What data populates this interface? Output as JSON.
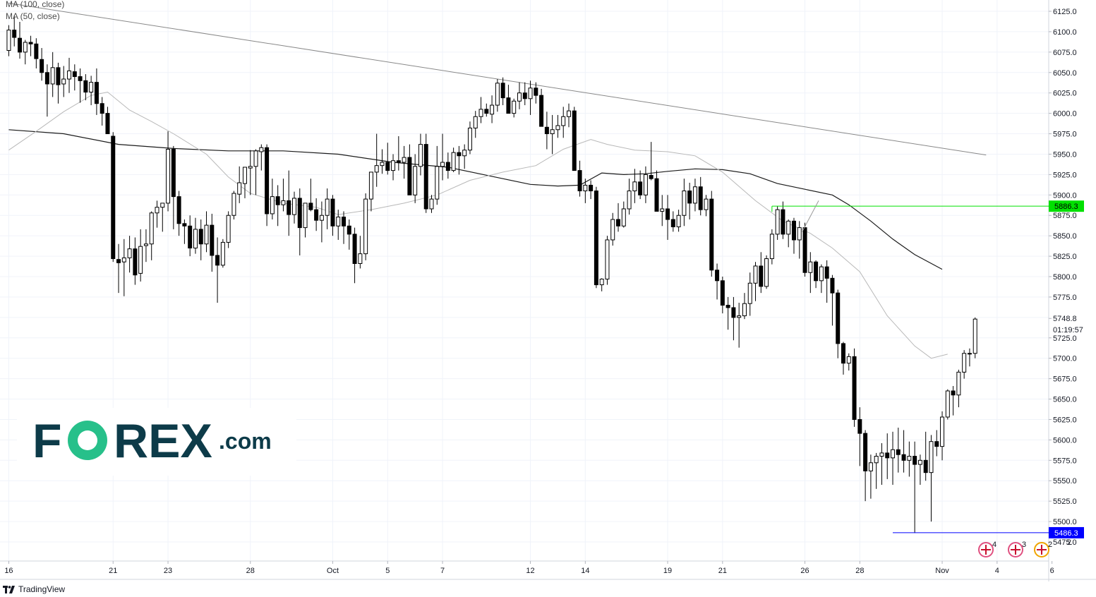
{
  "chart_data": {
    "type": "candlestick",
    "instrument_note": "",
    "y_range": [
      5462,
      6137
    ],
    "y_ticks": [
      5475,
      5500,
      5525,
      5550,
      5575,
      5600,
      5625,
      5650,
      5675,
      5700,
      5725,
      5750,
      5775,
      5800,
      5825,
      5850,
      5875,
      5900,
      5925,
      5950,
      5975,
      6000,
      6025,
      6050,
      6075,
      6100,
      6125
    ],
    "y_tick_labels": [
      "5475.0",
      "5500.0",
      "5525.0",
      "5550.0",
      "5575.0",
      "5600.0",
      "5625.0",
      "5650.0",
      "5675.0",
      "5700.0",
      "5725.0",
      "",
      "5775.0",
      "5800.0",
      "5825.0",
      "5850.0",
      "5875.0",
      "5900.0",
      "5925.0",
      "5950.0",
      "5975.0",
      "6000.0",
      "6025.0",
      "6050.0",
      "6075.0",
      "6100.0",
      "6125.0"
    ],
    "x_labels": [
      {
        "label": "16",
        "bar": 0
      },
      {
        "label": "21",
        "bar": 19
      },
      {
        "label": "23",
        "bar": 29
      },
      {
        "label": "28",
        "bar": 44
      },
      {
        "label": "Oct",
        "bar": 59
      },
      {
        "label": "5",
        "bar": 69
      },
      {
        "label": "7",
        "bar": 79
      },
      {
        "label": "12",
        "bar": 95
      },
      {
        "label": "14",
        "bar": 105
      },
      {
        "label": "19",
        "bar": 120
      },
      {
        "label": "21",
        "bar": 130
      },
      {
        "label": "26",
        "bar": 145
      },
      {
        "label": "28",
        "bar": 155
      },
      {
        "label": "Nov",
        "bar": 170
      },
      {
        "label": "4",
        "bar": 180
      },
      {
        "label": "6",
        "bar": 190
      }
    ],
    "candles": [
      [
        6077,
        6108,
        6070,
        6102
      ],
      [
        6102,
        6120,
        6082,
        6093
      ],
      [
        6092,
        6112,
        6067,
        6075
      ],
      [
        6075,
        6090,
        6060,
        6087
      ],
      [
        6087,
        6095,
        6070,
        6085
      ],
      [
        6085,
        6092,
        6055,
        6067
      ],
      [
        6066,
        6080,
        6040,
        6050
      ],
      [
        6050,
        6060,
        5996,
        6036
      ],
      [
        6036,
        6075,
        6020,
        6056
      ],
      [
        6056,
        6062,
        6012,
        6035
      ],
      [
        6036,
        6058,
        6020,
        6042
      ],
      [
        6042,
        6068,
        6025,
        6052
      ],
      [
        6051,
        6060,
        6028,
        6045
      ],
      [
        6045,
        6055,
        6013,
        6040
      ],
      [
        6040,
        6048,
        6016,
        6026
      ],
      [
        6026,
        6046,
        6010,
        6038
      ],
      [
        6038,
        6055,
        5998,
        6012
      ],
      [
        6012,
        6020,
        5985,
        6000
      ],
      [
        6000,
        6008,
        5978,
        5975
      ],
      [
        5972,
        5977,
        5818,
        5822
      ],
      [
        5821,
        5840,
        5780,
        5817
      ],
      [
        5818,
        5846,
        5776,
        5823
      ],
      [
        5823,
        5850,
        5805,
        5834
      ],
      [
        5834,
        5848,
        5790,
        5802
      ],
      [
        5804,
        5858,
        5794,
        5837
      ],
      [
        5838,
        5858,
        5818,
        5840
      ],
      [
        5840,
        5880,
        5820,
        5878
      ],
      [
        5878,
        5893,
        5860,
        5885
      ],
      [
        5885,
        5890,
        5855,
        5890
      ],
      [
        5890,
        5978,
        5880,
        5956
      ],
      [
        5956,
        5960,
        5858,
        5898
      ],
      [
        5898,
        5905,
        5850,
        5865
      ],
      [
        5865,
        5870,
        5840,
        5862
      ],
      [
        5862,
        5875,
        5825,
        5835
      ],
      [
        5835,
        5872,
        5828,
        5858
      ],
      [
        5858,
        5870,
        5820,
        5840
      ],
      [
        5840,
        5880,
        5830,
        5863
      ],
      [
        5863,
        5877,
        5806,
        5826
      ],
      [
        5826,
        5848,
        5768,
        5814
      ],
      [
        5814,
        5846,
        5811,
        5842
      ],
      [
        5842,
        5880,
        5835,
        5875
      ],
      [
        5875,
        5905,
        5870,
        5902
      ],
      [
        5901,
        5935,
        5890,
        5915
      ],
      [
        5914,
        5930,
        5896,
        5934
      ],
      [
        5933,
        5955,
        5900,
        5935
      ],
      [
        5935,
        5956,
        5900,
        5954
      ],
      [
        5953,
        5962,
        5930,
        5958
      ],
      [
        5958,
        5962,
        5862,
        5877
      ],
      [
        5877,
        5920,
        5870,
        5898
      ],
      [
        5898,
        5912,
        5862,
        5888
      ],
      [
        5888,
        5920,
        5880,
        5893
      ],
      [
        5893,
        5930,
        5850,
        5876
      ],
      [
        5876,
        5904,
        5865,
        5896
      ],
      [
        5896,
        5908,
        5826,
        5860
      ],
      [
        5860,
        5887,
        5848,
        5890
      ],
      [
        5890,
        5920,
        5880,
        5882
      ],
      [
        5882,
        5896,
        5856,
        5869
      ],
      [
        5869,
        5892,
        5842,
        5875
      ],
      [
        5875,
        5908,
        5858,
        5895
      ],
      [
        5895,
        5900,
        5850,
        5862
      ],
      [
        5862,
        5882,
        5845,
        5873
      ],
      [
        5873,
        5880,
        5840,
        5862
      ],
      [
        5862,
        5870,
        5833,
        5852
      ],
      [
        5852,
        5860,
        5792,
        5816
      ],
      [
        5816,
        5850,
        5810,
        5828
      ],
      [
        5828,
        5902,
        5820,
        5895
      ],
      [
        5895,
        5925,
        5880,
        5928
      ],
      [
        5928,
        5975,
        5910,
        5936
      ],
      [
        5936,
        5956,
        5926,
        5940
      ],
      [
        5940,
        5964,
        5925,
        5930
      ],
      [
        5930,
        5950,
        5918,
        5942
      ],
      [
        5942,
        5972,
        5930,
        5940
      ],
      [
        5940,
        5960,
        5920,
        5946
      ],
      [
        5946,
        5962,
        5900,
        5900
      ],
      [
        5900,
        5950,
        5890,
        5935
      ],
      [
        5935,
        5975,
        5924,
        5962
      ],
      [
        5962,
        5975,
        5878,
        5883
      ],
      [
        5883,
        5900,
        5878,
        5895
      ],
      [
        5895,
        5960,
        5888,
        5935
      ],
      [
        5935,
        5975,
        5918,
        5940
      ],
      [
        5940,
        5952,
        5920,
        5930
      ],
      [
        5930,
        5958,
        5928,
        5952
      ],
      [
        5952,
        5960,
        5925,
        5948
      ],
      [
        5948,
        5962,
        5932,
        5955
      ],
      [
        5955,
        5990,
        5950,
        5982
      ],
      [
        5982,
        6003,
        5970,
        5996
      ],
      [
        5996,
        6020,
        5988,
        6005
      ],
      [
        6005,
        6012,
        5996,
        6000
      ],
      [
        5999,
        6022,
        5988,
        6010
      ],
      [
        6010,
        6042,
        6002,
        6037
      ],
      [
        6037,
        6044,
        6010,
        6019
      ],
      [
        6019,
        6035,
        6000,
        6000
      ],
      [
        6000,
        6018,
        5995,
        6015
      ],
      [
        6015,
        6038,
        6005,
        6025
      ],
      [
        6025,
        6038,
        6010,
        6018
      ],
      [
        6018,
        6040,
        5998,
        6031
      ],
      [
        6031,
        6038,
        6012,
        6022
      ],
      [
        6022,
        6030,
        5985,
        5984
      ],
      [
        5983,
        6002,
        5956,
        5975
      ],
      [
        5975,
        5998,
        5950,
        5980
      ],
      [
        5980,
        5998,
        5970,
        5985
      ],
      [
        5985,
        6008,
        5970,
        5996
      ],
      [
        5996,
        6012,
        5983,
        6003
      ],
      [
        6003,
        6008,
        5930,
        5930
      ],
      [
        5930,
        5942,
        5898,
        5905
      ],
      [
        5905,
        5920,
        5890,
        5912
      ],
      [
        5912,
        5918,
        5895,
        5905
      ],
      [
        5905,
        5910,
        5786,
        5790
      ],
      [
        5790,
        5798,
        5782,
        5797
      ],
      [
        5797,
        5850,
        5790,
        5845
      ],
      [
        5845,
        5878,
        5838,
        5870
      ],
      [
        5870,
        5890,
        5855,
        5862
      ],
      [
        5862,
        5892,
        5860,
        5883
      ],
      [
        5883,
        5920,
        5876,
        5905
      ],
      [
        5905,
        5932,
        5890,
        5916
      ],
      [
        5916,
        5930,
        5895,
        5900
      ],
      [
        5900,
        5935,
        5890,
        5925
      ],
      [
        5924,
        5965,
        5918,
        5920
      ],
      [
        5920,
        5930,
        5880,
        5880
      ],
      [
        5880,
        5900,
        5862,
        5883
      ],
      [
        5883,
        5900,
        5845,
        5870
      ],
      [
        5870,
        5880,
        5855,
        5861
      ],
      [
        5861,
        5882,
        5855,
        5875
      ],
      [
        5875,
        5920,
        5862,
        5905
      ],
      [
        5905,
        5915,
        5870,
        5890
      ],
      [
        5890,
        5920,
        5880,
        5910
      ],
      [
        5910,
        5922,
        5875,
        5882
      ],
      [
        5882,
        5900,
        5874,
        5895
      ],
      [
        5895,
        5905,
        5800,
        5808
      ],
      [
        5808,
        5816,
        5772,
        5795
      ],
      [
        5795,
        5800,
        5755,
        5765
      ],
      [
        5765,
        5775,
        5735,
        5762
      ],
      [
        5762,
        5775,
        5722,
        5750
      ],
      [
        5750,
        5768,
        5713,
        5752
      ],
      [
        5752,
        5780,
        5748,
        5767
      ],
      [
        5767,
        5805,
        5752,
        5792
      ],
      [
        5792,
        5818,
        5770,
        5813
      ],
      [
        5813,
        5830,
        5780,
        5788
      ],
      [
        5788,
        5826,
        5785,
        5822
      ],
      [
        5822,
        5858,
        5815,
        5852
      ],
      [
        5852,
        5886,
        5845,
        5882
      ],
      [
        5882,
        5892,
        5846,
        5852
      ],
      [
        5852,
        5870,
        5836,
        5868
      ],
      [
        5868,
        5872,
        5828,
        5845
      ],
      [
        5845,
        5868,
        5822,
        5860
      ],
      [
        5860,
        5866,
        5800,
        5805
      ],
      [
        5805,
        5830,
        5780,
        5818
      ],
      [
        5818,
        5820,
        5786,
        5795
      ],
      [
        5795,
        5815,
        5780,
        5812
      ],
      [
        5812,
        5820,
        5768,
        5798
      ],
      [
        5798,
        5802,
        5740,
        5780
      ],
      [
        5780,
        5784,
        5700,
        5718
      ],
      [
        5718,
        5720,
        5680,
        5694
      ],
      [
        5694,
        5706,
        5685,
        5702
      ],
      [
        5702,
        5712,
        5616,
        5625
      ],
      [
        5625,
        5640,
        5568,
        5608
      ],
      [
        5608,
        5612,
        5525,
        5562
      ],
      [
        5562,
        5582,
        5528,
        5572
      ],
      [
        5572,
        5584,
        5540,
        5580
      ],
      [
        5580,
        5596,
        5545,
        5584
      ],
      [
        5584,
        5608,
        5552,
        5578
      ],
      [
        5578,
        5610,
        5545,
        5588
      ],
      [
        5588,
        5615,
        5560,
        5582
      ],
      [
        5582,
        5612,
        5560,
        5575
      ],
      [
        5575,
        5598,
        5555,
        5580
      ],
      [
        5580,
        5598,
        5486,
        5570
      ],
      [
        5570,
        5582,
        5545,
        5575
      ],
      [
        5575,
        5610,
        5550,
        5560
      ],
      [
        5560,
        5606,
        5500,
        5598
      ],
      [
        5598,
        5612,
        5580,
        5592
      ],
      [
        5592,
        5635,
        5575,
        5628
      ],
      [
        5628,
        5662,
        5625,
        5660
      ],
      [
        5660,
        5666,
        5630,
        5655
      ],
      [
        5655,
        5686,
        5640,
        5683
      ],
      [
        5683,
        5710,
        5675,
        5706
      ],
      [
        5706,
        5712,
        5690,
        5706
      ],
      [
        5706,
        5750,
        5700,
        5748
      ]
    ],
    "series": [
      {
        "name": "MA (100, close)",
        "color": "#1b1b1b",
        "values": [
          [
            0,
            5980
          ],
          [
            10,
            5975
          ],
          [
            20,
            5962
          ],
          [
            30,
            5957
          ],
          [
            40,
            5954
          ],
          [
            50,
            5954
          ],
          [
            60,
            5950
          ],
          [
            70,
            5940
          ],
          [
            80,
            5934
          ],
          [
            90,
            5920
          ],
          [
            95,
            5913
          ],
          [
            100,
            5911
          ],
          [
            104,
            5912
          ],
          [
            108,
            5927
          ],
          [
            112,
            5925
          ],
          [
            116,
            5926
          ],
          [
            120,
            5929
          ],
          [
            125,
            5932
          ],
          [
            130,
            5931
          ],
          [
            135,
            5926
          ],
          [
            140,
            5914
          ],
          [
            145,
            5907
          ],
          [
            150,
            5900
          ],
          [
            153,
            5888
          ],
          [
            157,
            5868
          ],
          [
            161,
            5846
          ],
          [
            165,
            5827
          ],
          [
            170,
            5809
          ]
        ]
      },
      {
        "name": "MA (50, close)",
        "color": "#b8b8b8",
        "values": [
          [
            0,
            5955
          ],
          [
            5,
            5978
          ],
          [
            10,
            6002
          ],
          [
            15,
            6022
          ],
          [
            18,
            6026
          ],
          [
            22,
            6004
          ],
          [
            26,
            5990
          ],
          [
            30,
            5975
          ],
          [
            36,
            5950
          ],
          [
            40,
            5922
          ],
          [
            44,
            5902
          ],
          [
            50,
            5890
          ],
          [
            56,
            5885
          ],
          [
            60,
            5876
          ],
          [
            66,
            5882
          ],
          [
            72,
            5890
          ],
          [
            78,
            5900
          ],
          [
            84,
            5918
          ],
          [
            90,
            5928
          ],
          [
            96,
            5936
          ],
          [
            101,
            5956
          ],
          [
            106,
            5968
          ],
          [
            109,
            5962
          ],
          [
            114,
            5955
          ],
          [
            120,
            5953
          ],
          [
            125,
            5948
          ],
          [
            130,
            5928
          ],
          [
            136,
            5893
          ],
          [
            141,
            5868
          ],
          [
            146,
            5853
          ],
          [
            150,
            5835
          ],
          [
            155,
            5806
          ],
          [
            160,
            5752
          ],
          [
            165,
            5715
          ],
          [
            168,
            5700
          ],
          [
            171,
            5705
          ]
        ]
      },
      {
        "name": "Trendline",
        "color": "#888888",
        "values": [
          [
            0,
            6135
          ],
          [
            178,
            5949
          ]
        ]
      }
    ],
    "legend": [
      "MA (100, close)",
      "MA (50, close)"
    ],
    "price_tags": [
      {
        "label": "5886.3",
        "value": 5886.3,
        "color": "#00e000",
        "line_from_bar": 139
      },
      {
        "label": "5486.3",
        "value": 5486.3,
        "color": "#0000ff",
        "line_from_bar": 161
      }
    ],
    "last_price_label": "5748.8",
    "countdown_label": "01:19:57",
    "event_badges": [
      "4",
      "3",
      "2"
    ],
    "axis_corner_label": "2",
    "grid": true,
    "logo_text": "FOREX.com"
  },
  "footer": {
    "brand": "TradingView"
  }
}
